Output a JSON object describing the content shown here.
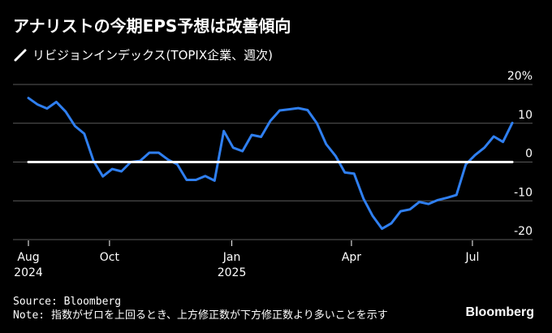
{
  "title": "アナリストの今期EPS予想は改善傾向",
  "legend": {
    "label": "リビジョンインデックス(TOPIX企業、週次)",
    "color": "#ffffff"
  },
  "colors": {
    "background": "#000000",
    "series": "#2f7ff0",
    "zero_line": "#ffffff",
    "grid": "#5a5a5a",
    "text": "#ffffff"
  },
  "footer": {
    "source": "Source: Bloomberg",
    "note": "Note: 指数がゼロを上回るとき、上方修正数が下方修正数より多いことを示す",
    "logo": "Bloomberg"
  },
  "chart_data": {
    "type": "line",
    "title": "アナリストの今期EPS予想は改善傾向",
    "ylabel": "",
    "xlabel": "",
    "ylim": [
      -20,
      20
    ],
    "y_ticks": [
      {
        "value": 20,
        "label": "20%"
      },
      {
        "value": 10,
        "label": "10"
      },
      {
        "value": 0,
        "label": "0"
      },
      {
        "value": -10,
        "label": "-10"
      },
      {
        "value": -20,
        "label": "-20"
      }
    ],
    "x_ticks": [
      {
        "date": "2024-08-01",
        "label": "Aug",
        "sublabel": "2024"
      },
      {
        "date": "2024-10-01",
        "label": "Oct",
        "sublabel": ""
      },
      {
        "date": "2025-01-01",
        "label": "Jan",
        "sublabel": "2025"
      },
      {
        "date": "2025-04-01",
        "label": "Apr",
        "sublabel": ""
      },
      {
        "date": "2025-07-01",
        "label": "Jul",
        "sublabel": ""
      }
    ],
    "xlim": [
      "2024-08-01",
      "2025-09-01"
    ],
    "grid": "horizontal",
    "legend_position": "top-left",
    "series": [
      {
        "name": "リビジョンインデックス(TOPIX企業、週次)",
        "color": "#2f7ff0",
        "points": [
          [
            "2024-08-01",
            16.5
          ],
          [
            "2024-08-08",
            14.8
          ],
          [
            "2024-08-15",
            13.8
          ],
          [
            "2024-08-22",
            15.5
          ],
          [
            "2024-08-29",
            13.0
          ],
          [
            "2024-09-05",
            9.3
          ],
          [
            "2024-09-12",
            7.3
          ],
          [
            "2024-09-19",
            0.3
          ],
          [
            "2024-09-26",
            -3.7
          ],
          [
            "2024-10-03",
            -1.8
          ],
          [
            "2024-10-10",
            -2.4
          ],
          [
            "2024-10-17",
            0.0
          ],
          [
            "2024-10-24",
            0.3
          ],
          [
            "2024-10-31",
            2.4
          ],
          [
            "2024-11-07",
            2.4
          ],
          [
            "2024-11-14",
            0.6
          ],
          [
            "2024-11-21",
            -0.6
          ],
          [
            "2024-11-28",
            -4.6
          ],
          [
            "2024-12-05",
            -4.6
          ],
          [
            "2024-12-12",
            -3.6
          ],
          [
            "2024-12-19",
            -4.8
          ],
          [
            "2024-12-26",
            8.0
          ],
          [
            "2025-01-02",
            3.7
          ],
          [
            "2025-01-09",
            2.8
          ],
          [
            "2025-01-16",
            7.0
          ],
          [
            "2025-01-23",
            6.5
          ],
          [
            "2025-01-30",
            10.6
          ],
          [
            "2025-02-06",
            13.3
          ],
          [
            "2025-02-13",
            13.6
          ],
          [
            "2025-02-20",
            13.9
          ],
          [
            "2025-02-27",
            13.4
          ],
          [
            "2025-03-06",
            10.0
          ],
          [
            "2025-03-13",
            4.6
          ],
          [
            "2025-03-20",
            1.6
          ],
          [
            "2025-03-27",
            -2.7
          ],
          [
            "2025-04-03",
            -3.0
          ],
          [
            "2025-04-10",
            -9.4
          ],
          [
            "2025-04-17",
            -13.9
          ],
          [
            "2025-04-24",
            -17.2
          ],
          [
            "2025-05-01",
            -15.8
          ],
          [
            "2025-05-08",
            -12.7
          ],
          [
            "2025-05-15",
            -12.2
          ],
          [
            "2025-05-22",
            -10.3
          ],
          [
            "2025-05-29",
            -10.8
          ],
          [
            "2025-06-05",
            -9.8
          ],
          [
            "2025-06-12",
            -9.2
          ],
          [
            "2025-06-19",
            -8.5
          ],
          [
            "2025-06-26",
            -0.6
          ],
          [
            "2025-07-03",
            1.8
          ],
          [
            "2025-07-10",
            3.7
          ],
          [
            "2025-07-17",
            6.6
          ],
          [
            "2025-07-24",
            5.2
          ],
          [
            "2025-07-31",
            10.1
          ]
        ]
      },
      {
        "name": "zero",
        "color": "#ffffff",
        "points": [
          [
            "2024-08-01",
            0
          ],
          [
            "2025-07-31",
            0
          ]
        ]
      }
    ]
  }
}
